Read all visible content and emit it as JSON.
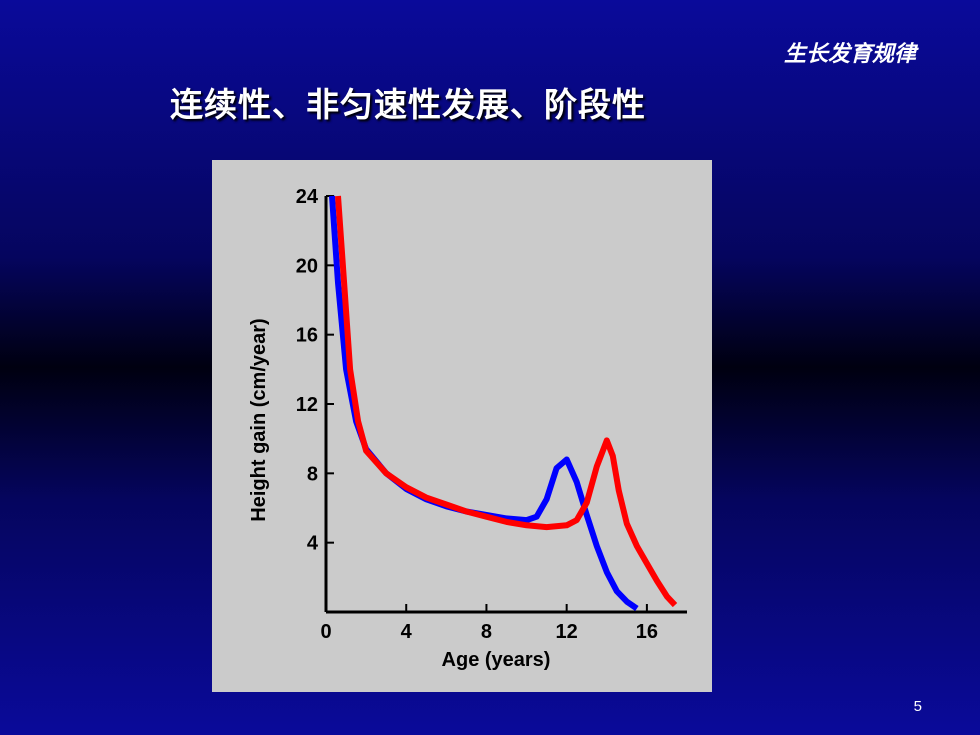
{
  "header": {
    "tag": "生长发育规律"
  },
  "slide": {
    "title": "连续性、非匀速性发展、阶段性",
    "page_number": "5"
  },
  "chart_data": {
    "type": "line",
    "xlabel": "Age (years)",
    "ylabel": "Height gain (cm/year)",
    "xlim": [
      0,
      18
    ],
    "ylim": [
      0,
      24
    ],
    "x_ticks": [
      0,
      4,
      8,
      12,
      16
    ],
    "y_ticks": [
      4,
      8,
      12,
      16,
      20,
      24
    ],
    "grid": false,
    "series": [
      {
        "color": "#0000ff",
        "x": [
          0.3,
          0.6,
          1,
          1.5,
          2,
          3,
          4,
          5,
          6,
          7,
          8,
          9,
          10,
          10.5,
          11,
          11.5,
          12,
          12.5,
          13,
          13.5,
          14,
          14.5,
          15,
          15.5
        ],
        "y": [
          24,
          19,
          14,
          11,
          9.4,
          8,
          7.1,
          6.5,
          6.1,
          5.8,
          5.6,
          5.4,
          5.3,
          5.5,
          6.5,
          8.3,
          8.8,
          7.5,
          5.6,
          3.8,
          2.3,
          1.2,
          0.6,
          0.2
        ]
      },
      {
        "color": "#ff0000",
        "x": [
          0.6,
          0.9,
          1.2,
          1.6,
          2,
          3,
          4,
          5,
          6,
          7,
          8,
          9,
          10,
          11,
          12,
          12.5,
          13,
          13.5,
          14,
          14.3,
          14.6,
          15,
          15.5,
          16,
          16.5,
          17,
          17.4
        ],
        "y": [
          24,
          19,
          14,
          11,
          9.3,
          8,
          7.2,
          6.6,
          6.2,
          5.8,
          5.5,
          5.2,
          5.0,
          4.9,
          5.0,
          5.3,
          6.3,
          8.4,
          9.9,
          9.0,
          7.0,
          5.1,
          3.8,
          2.8,
          1.8,
          0.9,
          0.4
        ]
      }
    ]
  }
}
